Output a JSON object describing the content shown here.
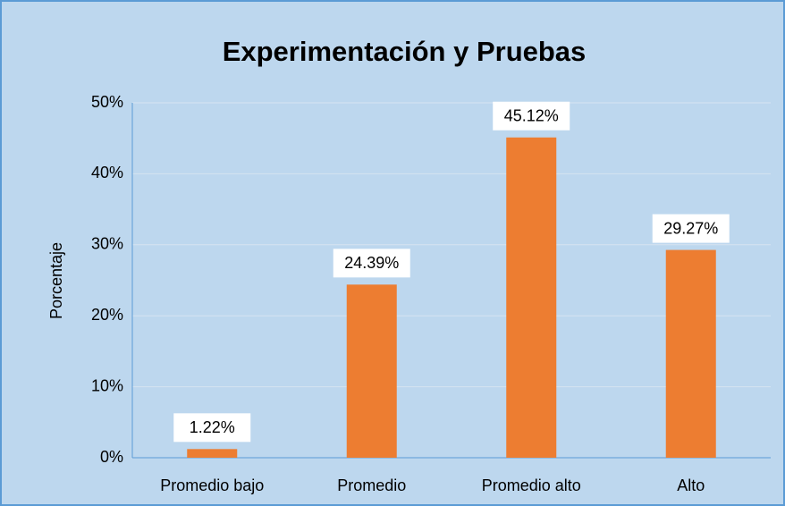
{
  "chart_data": {
    "type": "bar",
    "title": "Experimentación y Pruebas",
    "y_label": "Porcentaje",
    "categories": [
      "Promedio bajo",
      "Promedio",
      "Promedio alto",
      "Alto"
    ],
    "values": [
      1.22,
      24.39,
      45.12,
      29.27
    ],
    "value_labels": [
      "1.22%",
      "24.39%",
      "45.12%",
      "29.27%"
    ],
    "color": "#ed7d31",
    "ylim": [
      0,
      50
    ],
    "yticks": [
      {
        "value": 0,
        "label": "0%"
      },
      {
        "value": 10,
        "label": "10%"
      },
      {
        "value": 20,
        "label": "20%"
      },
      {
        "value": 30,
        "label": "30%"
      },
      {
        "value": 40,
        "label": "40%"
      },
      {
        "value": 50,
        "label": "50%"
      }
    ],
    "grid": true
  }
}
